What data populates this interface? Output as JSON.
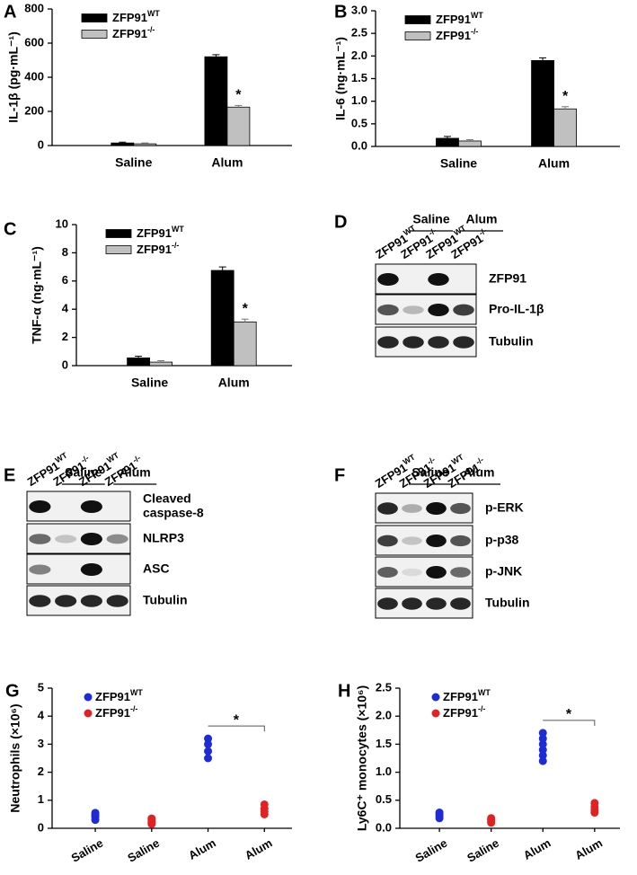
{
  "chart_data": [
    {
      "panel": "A",
      "type": "bar",
      "y_label": "IL-1β (pg·mL⁻¹)",
      "categories": [
        "Saline",
        "Alum"
      ],
      "series": [
        {
          "name": "ZFP91",
          "sup": "WT",
          "color": "#000000",
          "values": [
            15,
            520
          ],
          "errors": [
            5,
            12
          ]
        },
        {
          "name": "ZFP91",
          "sup": "-/-",
          "color": "#c0c0c0",
          "values": [
            10,
            225
          ],
          "errors": [
            5,
            10
          ]
        }
      ],
      "ylim": [
        0,
        800
      ],
      "yticks": [
        0,
        200,
        400,
        600,
        800
      ],
      "legend": "upper left",
      "annotation": "*"
    },
    {
      "panel": "B",
      "type": "bar",
      "y_label": "IL-6 (ng·mL⁻¹)",
      "categories": [
        "Saline",
        "Alum"
      ],
      "series": [
        {
          "name": "ZFP91",
          "sup": "WT",
          "color": "#000000",
          "values": [
            0.18,
            1.9
          ],
          "errors": [
            0.04,
            0.06
          ]
        },
        {
          "name": "ZFP91",
          "sup": "-/-",
          "color": "#c0c0c0",
          "values": [
            0.12,
            0.83
          ],
          "errors": [
            0.03,
            0.05
          ]
        }
      ],
      "ylim": [
        0,
        3
      ],
      "yticks": [
        {
          "value": 0,
          "label": "0.0"
        },
        0.5,
        {
          "value": 1,
          "label": "1.0"
        },
        1.5,
        {
          "value": 2,
          "label": "2.0"
        },
        2.5,
        {
          "value": 3,
          "label": "3.0"
        }
      ],
      "legend": "upper left",
      "annotation": "*"
    },
    {
      "panel": "C",
      "type": "bar",
      "y_label": "TNF-α (ng·mL⁻¹)",
      "categories": [
        "Saline",
        "Alum"
      ],
      "series": [
        {
          "name": "ZFP91",
          "sup": "WT",
          "color": "#000000",
          "values": [
            0.55,
            6.75
          ],
          "errors": [
            0.12,
            0.25
          ]
        },
        {
          "name": "ZFP91",
          "sup": "-/-",
          "color": "#c0c0c0",
          "values": [
            0.25,
            3.1
          ],
          "errors": [
            0.1,
            0.2
          ]
        }
      ],
      "ylim": [
        0,
        10
      ],
      "yticks": [
        0,
        2,
        4,
        6,
        8,
        10
      ],
      "legend": "upper left",
      "annotation": "*"
    },
    {
      "panel": "G",
      "type": "dot",
      "y_label": "Neutrophils (×10⁶)",
      "categories": [
        "Saline",
        "Saline",
        "Alum",
        "Alum"
      ],
      "series": [
        {
          "name": "ZFP91",
          "sup": "WT",
          "color": "#1f2bd6",
          "values": [
            [
              0.3,
              0.4,
              0.45,
              0.5,
              0.55
            ],
            null,
            [
              2.5,
              2.75,
              3.0,
              3.2
            ],
            null
          ]
        },
        {
          "name": "ZFP91",
          "sup": "-/-",
          "color": "#e02222",
          "values": [
            null,
            [
              0.15,
              0.2,
              0.25,
              0.3,
              0.35
            ],
            null,
            [
              0.5,
              0.6,
              0.7,
              0.85
            ]
          ]
        }
      ],
      "ylim": [
        0,
        5
      ],
      "yticks": [
        0,
        1,
        2,
        3,
        4,
        5
      ],
      "legend": "upper left",
      "annotation": "*"
    },
    {
      "panel": "H",
      "type": "dot",
      "y_label": "Ly6C⁺ monocytes (×10⁶)",
      "categories": [
        "Saline",
        "Saline",
        "Alum",
        "Alum"
      ],
      "series": [
        {
          "name": "ZFP91",
          "sup": "WT",
          "color": "#1f2bd6",
          "values": [
            [
              0.18,
              0.22,
              0.25,
              0.28
            ],
            null,
            [
              1.2,
              1.3,
              1.4,
              1.5,
              1.6,
              1.7
            ],
            null
          ]
        },
        {
          "name": "ZFP91",
          "sup": "-/-",
          "color": "#e02222",
          "values": [
            null,
            [
              0.1,
              0.12,
              0.15,
              0.18
            ],
            null,
            [
              0.28,
              0.33,
              0.38,
              0.45
            ]
          ]
        }
      ],
      "ylim": [
        0,
        2.5
      ],
      "yticks": [
        {
          "value": 0,
          "label": "0.0"
        },
        0.5,
        {
          "value": 1,
          "label": "1.0"
        },
        1.5,
        {
          "value": 2,
          "label": "2.0"
        },
        2.5
      ],
      "legend": "upper left",
      "annotation": "*"
    }
  ],
  "blots": [
    {
      "panel": "D",
      "groups": [
        "Saline",
        "Alum"
      ],
      "lanes": [
        {
          "name": "ZFP91",
          "sup": "WT"
        },
        {
          "name": "ZFP91",
          "sup": "-/-"
        },
        {
          "name": "ZFP91",
          "sup": "WT"
        },
        {
          "name": "ZFP91",
          "sup": "-/-"
        }
      ],
      "rows": [
        [
          "ZFP91"
        ],
        [
          "Pro-IL-1β"
        ],
        [
          "Tubulin"
        ]
      ]
    },
    {
      "panel": "E",
      "groups": [
        "Saline",
        "Alum"
      ],
      "lanes": [
        {
          "name": "ZFP91",
          "sup": "WT"
        },
        {
          "name": "ZFP91",
          "sup": "-/-"
        },
        {
          "name": "ZFP91",
          "sup": "WT"
        },
        {
          "name": "ZFP91",
          "sup": "-/-"
        }
      ],
      "rows": [
        [
          "Cleaved",
          "caspase-8"
        ],
        [
          "NLRP3"
        ],
        [
          "ASC"
        ],
        [
          "Tubulin"
        ]
      ]
    },
    {
      "panel": "F",
      "groups": [
        "Saline",
        "Alum"
      ],
      "lanes": [
        {
          "name": "ZFP91",
          "sup": "WT"
        },
        {
          "name": "ZFP91",
          "sup": "-/-"
        },
        {
          "name": "ZFP91",
          "sup": "WT"
        },
        {
          "name": "ZFP91",
          "sup": "-/-"
        }
      ],
      "rows": [
        [
          "p-ERK"
        ],
        [
          "p-p38"
        ],
        [
          "p-JNK"
        ],
        [
          "Tubulin"
        ]
      ]
    }
  ]
}
